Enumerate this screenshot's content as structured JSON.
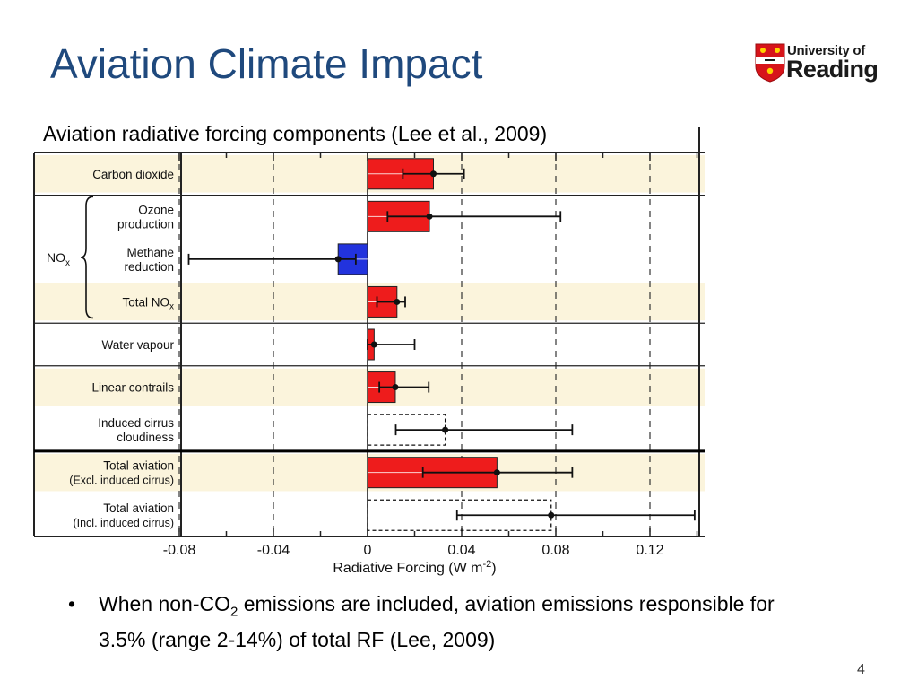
{
  "slide": {
    "title": "Aviation Climate Impact",
    "subtitle": "Aviation radiative forcing components (Lee et al., 2009)",
    "bullet_pre": "When non-CO",
    "bullet_sub": "2",
    "bullet_post": " emissions are included, aviation emissions responsible for 3.5% (range 2-14%) of total RF (Lee, 2009)",
    "page_number": "4"
  },
  "logo": {
    "line1": "University of",
    "line2": "Reading",
    "crest_color": "#d7141a"
  },
  "chart_data": {
    "type": "bar",
    "orientation": "horizontal",
    "xlabel": "Radiative Forcing  (W m",
    "xlabel_sup": "-2",
    "xlabel_end": ")",
    "xlim": [
      -0.08,
      0.14
    ],
    "xticks": [
      -0.08,
      -0.04,
      0,
      0.04,
      0.08,
      0.12
    ],
    "xtick_labels": [
      "-0.08",
      "-0.04",
      "0",
      "0.04",
      "0.08",
      "0.12"
    ],
    "grid": "vertical dashed",
    "group_label": "NO",
    "group_label_sub": "x",
    "colors": {
      "positive": "#ee1c1c",
      "negative": "#2233dd",
      "band": "#fbf4dc"
    },
    "rows": [
      {
        "label": [
          "Carbon dioxide"
        ],
        "value": 0.028,
        "low": 0.015,
        "high": 0.041,
        "fill": "red",
        "band": true
      },
      {
        "label": [
          "Ozone",
          "production"
        ],
        "value": 0.0263,
        "low": 0.0085,
        "high": 0.082,
        "fill": "red",
        "band": false
      },
      {
        "label": [
          "Methane",
          "reduction"
        ],
        "value": -0.0125,
        "low": -0.076,
        "high": -0.005,
        "fill": "blue",
        "band": false
      },
      {
        "label": [
          "Total NO",
          "x"
        ],
        "value": 0.0125,
        "low": 0.004,
        "high": 0.016,
        "fill": "red",
        "band": true
      },
      {
        "label": [
          "Water vapour"
        ],
        "value": 0.0028,
        "low": 0.0,
        "high": 0.02,
        "fill": "red",
        "band": false
      },
      {
        "label": [
          "Linear contrails"
        ],
        "value": 0.0118,
        "low": 0.005,
        "high": 0.026,
        "fill": "red",
        "band": true
      },
      {
        "label": [
          "Induced cirrus",
          "cloudiness"
        ],
        "value": 0.033,
        "low": 0.012,
        "high": 0.087,
        "fill": "none",
        "band": false
      },
      {
        "label": [
          "Total aviation",
          "(Excl. induced cirrus)"
        ],
        "value": 0.055,
        "low": 0.0235,
        "high": 0.087,
        "fill": "red",
        "band": true
      },
      {
        "label": [
          "Total aviation",
          "(Incl. induced cirrus)"
        ],
        "value": 0.078,
        "low": 0.038,
        "high": 0.139,
        "fill": "none",
        "band": false
      }
    ]
  }
}
